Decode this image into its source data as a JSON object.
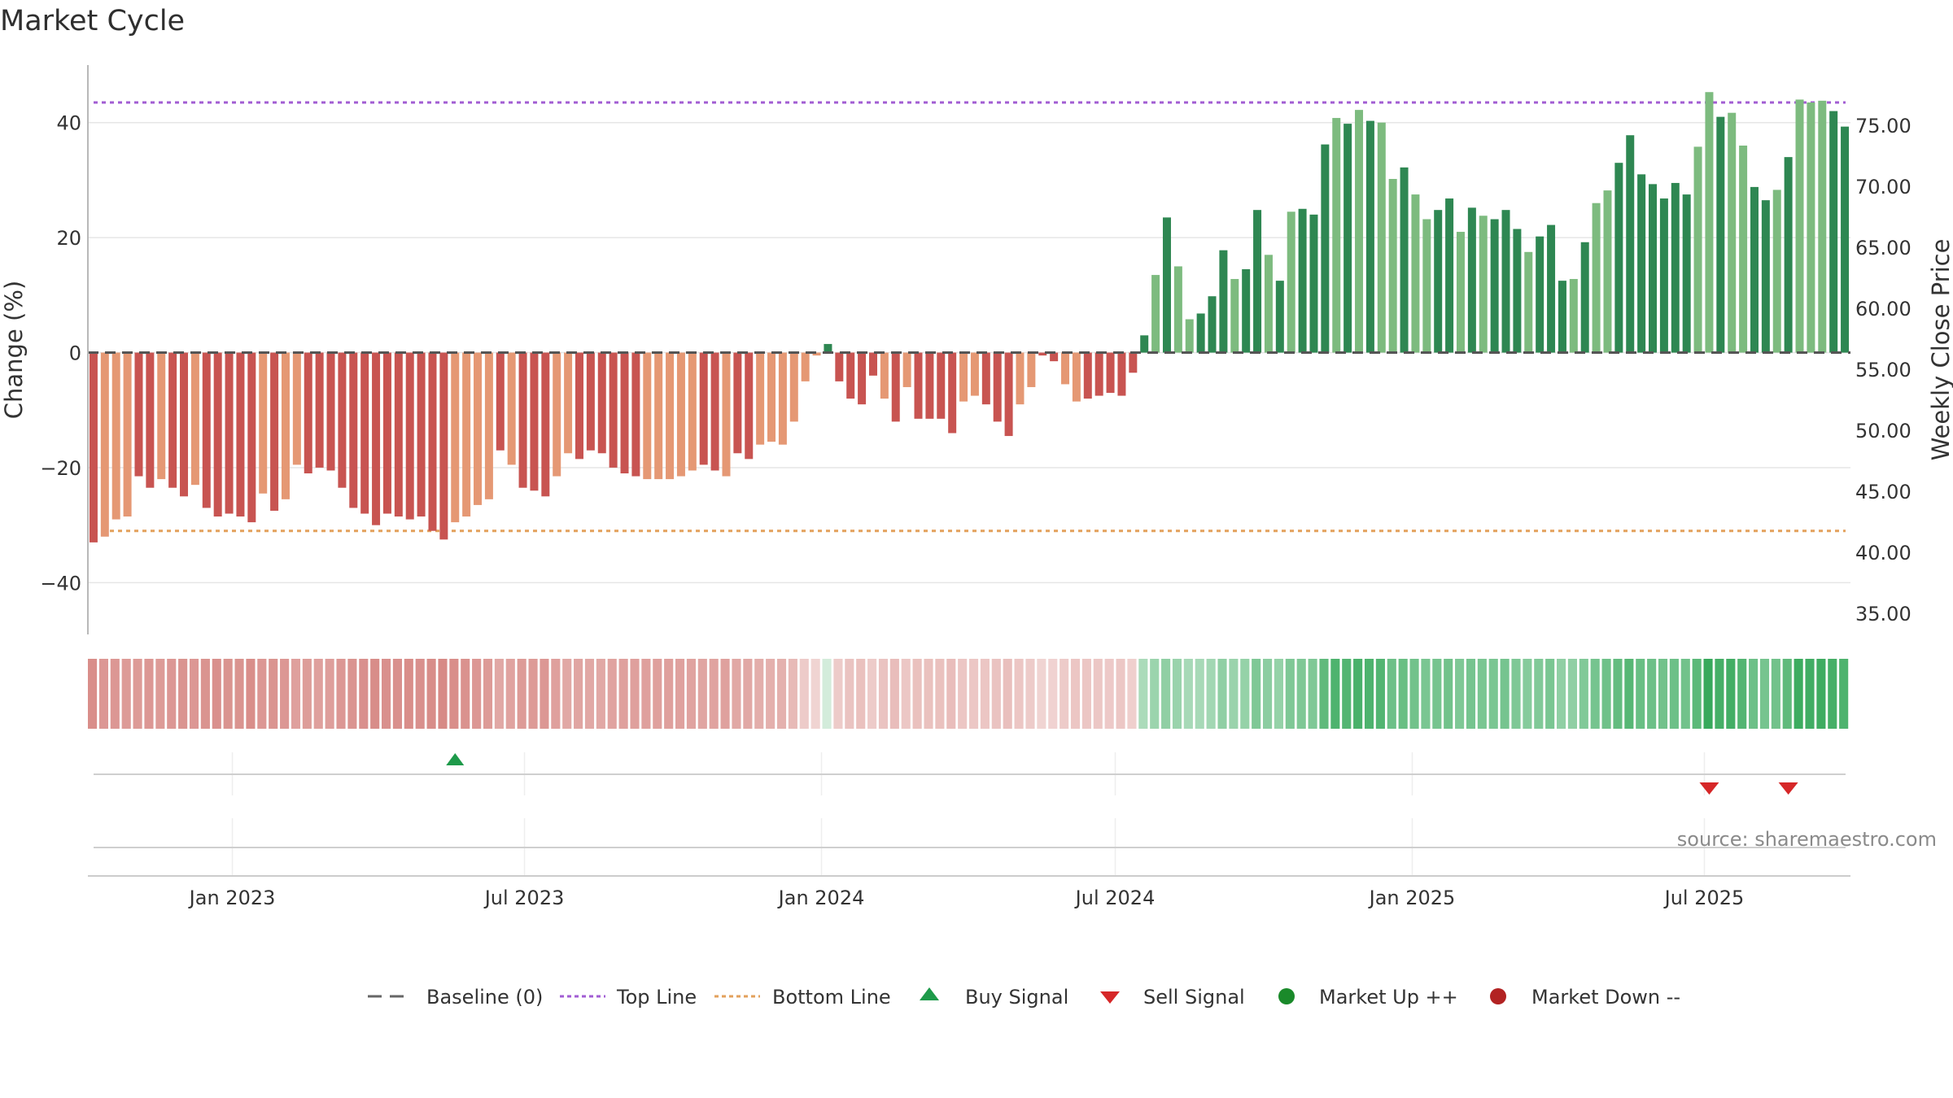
{
  "title": "Market Cycle",
  "source_note": "source: sharemaestro.com",
  "colors": {
    "down_dark": "#c85451",
    "down_light": "#e59874",
    "up_dark": "#2e8752",
    "up_light": "#7dbb7f",
    "top_line": "#a25dd3",
    "bottom_line": "#e3a15c",
    "baseline": "#555555",
    "buy": "#1e9a4a",
    "sell": "#d62728",
    "market_up": "#1a8a2a",
    "market_down": "#b22222",
    "grid": "#e6e6e6"
  },
  "legend": [
    {
      "id": "baseline",
      "label": "Baseline (0)",
      "icon": "dash-line"
    },
    {
      "id": "top",
      "label": "Top Line",
      "icon": "dotted-line"
    },
    {
      "id": "bottom",
      "label": "Bottom Line",
      "icon": "dotted-line"
    },
    {
      "id": "buy",
      "label": "Buy Signal",
      "icon": "triangle-up"
    },
    {
      "id": "sell",
      "label": "Sell Signal",
      "icon": "triangle-down"
    },
    {
      "id": "up",
      "label": "Market Up ++",
      "icon": "circle"
    },
    {
      "id": "down",
      "label": "Market Down --",
      "icon": "circle"
    }
  ],
  "chart_data": {
    "type": "bar",
    "x_start": "2022-10-07",
    "x_interval_days": 7,
    "values": [
      -33,
      -32,
      -29,
      -28.5,
      -21.5,
      -23.5,
      -22,
      -23.5,
      -25,
      -23,
      -27,
      -28.5,
      -28,
      -28.5,
      -29.5,
      -24.5,
      -27.5,
      -25.5,
      -19.5,
      -21,
      -20,
      -20.5,
      -23.5,
      -27,
      -28,
      -30,
      -28,
      -28.5,
      -29,
      -28.5,
      -31,
      -32.5,
      -29.5,
      -28.5,
      -26.5,
      -25.5,
      -17,
      -19.5,
      -23.5,
      -24,
      -25,
      -21.5,
      -17.5,
      -18.5,
      -17,
      -17.5,
      -20,
      -21,
      -21.5,
      -22,
      -22,
      -22,
      -21.5,
      -20.5,
      -19.5,
      -20.5,
      -21.5,
      -17.5,
      -18.5,
      -16,
      -15.5,
      -16,
      -12,
      -5,
      -0.5,
      1.5,
      -5,
      -8,
      -9,
      -4,
      -8,
      -12,
      -6,
      -11.5,
      -11.5,
      -11.5,
      -14,
      -8.5,
      -7.5,
      -9,
      -12,
      -14.5,
      -9,
      -6,
      -0.5,
      -1.5,
      -5.5,
      -8.5,
      -8,
      -7.5,
      -7,
      -7.5,
      -3.5,
      3,
      13.5,
      23.5,
      15,
      5.8,
      6.8,
      9.8,
      17.8,
      12.8,
      14.5,
      24.8,
      17,
      12.5,
      24.5,
      25,
      24,
      36.2,
      40.8,
      39.8,
      42.2,
      40.3,
      40,
      30.2,
      32.2,
      27.5,
      23.2,
      24.8,
      26.8,
      21,
      25.2,
      23.8,
      23.2,
      24.8,
      21.5,
      17.5,
      20.2,
      22.2,
      12.5,
      12.8,
      19.2,
      26,
      28.2,
      33,
      37.8,
      31,
      29.3,
      26.8,
      29.5,
      27.5,
      35.8,
      45.3,
      41,
      41.7,
      36,
      28.8,
      26.5,
      28.3,
      34,
      44,
      43.5,
      43.8,
      42,
      39.3
    ],
    "styles": "DLLLDDLDDLDDDDDLDLLDDDDDDDDDDDDDLLLLDLDDDLLDDDDDDLLLLLDDLDDLLLLLLDDDDDLDLDDDDLLDDDLLDDLLDDDDDDLDLLDDDLDDLDLDDDLDLDLLDLLDDLDLDDDLDDDLDLLDDDDDDDLLDLLDDLDLLLDDDDLLL",
    "strip_alpha": [
      0.65,
      0.6,
      0.6,
      0.58,
      0.58,
      0.6,
      0.58,
      0.6,
      0.62,
      0.6,
      0.62,
      0.64,
      0.62,
      0.62,
      0.65,
      0.6,
      0.62,
      0.6,
      0.55,
      0.57,
      0.55,
      0.56,
      0.6,
      0.62,
      0.64,
      0.66,
      0.64,
      0.64,
      0.65,
      0.64,
      0.66,
      0.68,
      0.65,
      0.63,
      0.6,
      0.58,
      0.5,
      0.53,
      0.58,
      0.58,
      0.6,
      0.55,
      0.5,
      0.52,
      0.5,
      0.5,
      0.53,
      0.55,
      0.55,
      0.55,
      0.55,
      0.55,
      0.54,
      0.53,
      0.52,
      0.53,
      0.54,
      0.5,
      0.5,
      0.47,
      0.46,
      0.45,
      0.4,
      0.3,
      0.25,
      0.2,
      0.3,
      0.35,
      0.36,
      0.3,
      0.35,
      0.38,
      0.32,
      0.36,
      0.36,
      0.36,
      0.38,
      0.33,
      0.32,
      0.33,
      0.35,
      0.37,
      0.33,
      0.3,
      0.25,
      0.26,
      0.3,
      0.33,
      0.33,
      0.32,
      0.31,
      0.32,
      0.28,
      0.38,
      0.45,
      0.5,
      0.46,
      0.4,
      0.4,
      0.42,
      0.5,
      0.46,
      0.48,
      0.58,
      0.52,
      0.48,
      0.58,
      0.58,
      0.58,
      0.72,
      0.8,
      0.78,
      0.82,
      0.8,
      0.78,
      0.66,
      0.68,
      0.64,
      0.6,
      0.62,
      0.64,
      0.58,
      0.62,
      0.6,
      0.6,
      0.62,
      0.58,
      0.55,
      0.57,
      0.6,
      0.5,
      0.5,
      0.57,
      0.62,
      0.65,
      0.7,
      0.76,
      0.68,
      0.66,
      0.64,
      0.66,
      0.64,
      0.74,
      0.9,
      0.84,
      0.85,
      0.78,
      0.66,
      0.62,
      0.64,
      0.72,
      0.88,
      0.86,
      0.87,
      0.84,
      0.8
    ],
    "ylabel": "Change (%)",
    "ylim": [
      -49,
      50
    ],
    "yticks": [
      -40,
      -20,
      0,
      20,
      40
    ],
    "ytick_labels": [
      "−40",
      "−20",
      "0",
      "20",
      "40"
    ],
    "y2label": "Weekly Close Price",
    "y2ticks": [
      35,
      40,
      45,
      50,
      55,
      60,
      65,
      70,
      75
    ],
    "y2tick_labels": [
      "35.00",
      "40.00",
      "45.00",
      "50.00",
      "55.00",
      "60.00",
      "65.00",
      "70.00",
      "75.00"
    ],
    "xticks": [
      {
        "date": "2023-01-01",
        "label": "Jan 2023"
      },
      {
        "date": "2023-07-01",
        "label": "Jul 2023"
      },
      {
        "date": "2024-01-01",
        "label": "Jan 2024"
      },
      {
        "date": "2024-07-01",
        "label": "Jul 2024"
      },
      {
        "date": "2025-01-01",
        "label": "Jan 2025"
      },
      {
        "date": "2025-07-01",
        "label": "Jul 2025"
      }
    ],
    "top_line": 43.5,
    "bottom_line": -31,
    "baseline": 0,
    "buy_signals": [
      "2023-05-19"
    ],
    "sell_signals": [
      "2025-07-04",
      "2025-08-22"
    ]
  }
}
